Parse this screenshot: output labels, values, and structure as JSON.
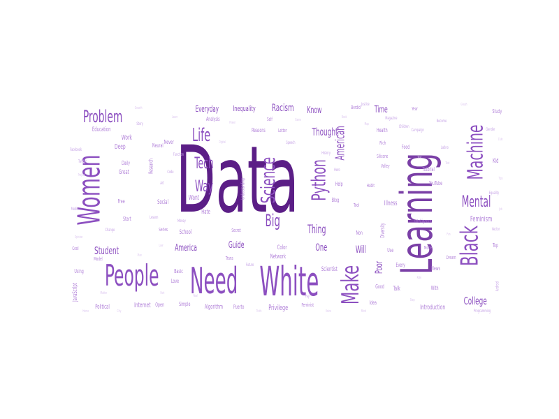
{
  "palette": {
    "deep": "#5b1e86",
    "dark": "#6a2c93",
    "mid": "#7a3fa6",
    "violet": "#8c4fc0",
    "light": "#b07fd8",
    "lilac": "#c6a3e6",
    "pale": "#ddc8f0"
  },
  "words": [
    {
      "text": "Data",
      "tone": "deep"
    },
    {
      "text": "Learning",
      "tone": "mid"
    },
    {
      "text": "White",
      "tone": "violet"
    },
    {
      "text": "Need",
      "tone": "violet"
    },
    {
      "text": "People",
      "tone": "violet"
    },
    {
      "text": "Women",
      "tone": "violet"
    },
    {
      "text": "Black",
      "tone": "violet"
    },
    {
      "text": "Machine",
      "tone": "violet"
    },
    {
      "text": "Make",
      "tone": "violet"
    },
    {
      "text": "Science",
      "tone": "violet"
    },
    {
      "text": "Python",
      "tone": "violet"
    },
    {
      "text": "Problem",
      "tone": "violet"
    },
    {
      "text": "Life",
      "tone": "violet"
    },
    {
      "text": "Tech",
      "tone": "violet"
    },
    {
      "text": "Way",
      "tone": "violet"
    },
    {
      "text": "Big",
      "tone": "violet"
    },
    {
      "text": "Mental",
      "tone": "violet"
    },
    {
      "text": "American",
      "tone": "violet"
    },
    {
      "text": "Thought",
      "tone": "violet"
    },
    {
      "text": "Thing",
      "tone": "violet"
    },
    {
      "text": "Student",
      "tone": "violet"
    },
    {
      "text": "College",
      "tone": "violet"
    },
    {
      "text": "Racism",
      "tone": "violet"
    },
    {
      "text": "Everyday",
      "tone": "violet"
    },
    {
      "text": "Inequality",
      "tone": "violet"
    },
    {
      "text": "Know",
      "tone": "violet"
    },
    {
      "text": "Time",
      "tone": "violet"
    },
    {
      "text": "Guide",
      "tone": "violet"
    },
    {
      "text": "America",
      "tone": "violet"
    },
    {
      "text": "One",
      "tone": "violet"
    },
    {
      "text": "Will",
      "tone": "violet"
    },
    {
      "text": "Poor",
      "tone": "violet"
    },
    {
      "text": "Feminism",
      "tone": "light"
    },
    {
      "text": "Introduction",
      "tone": "light"
    },
    {
      "text": "Privilege",
      "tone": "light"
    },
    {
      "text": "Algorithm",
      "tone": "light"
    },
    {
      "text": "Internet",
      "tone": "light"
    },
    {
      "text": "Political",
      "tone": "light"
    },
    {
      "text": "JavaScript",
      "tone": "light"
    },
    {
      "text": "Scientist",
      "tone": "light"
    },
    {
      "text": "Network",
      "tone": "light"
    },
    {
      "text": "Color",
      "tone": "light"
    },
    {
      "text": "Talk",
      "tone": "light"
    },
    {
      "text": "Every",
      "tone": "light"
    },
    {
      "text": "Illness",
      "tone": "light"
    },
    {
      "text": "Intelligence",
      "tone": "light"
    },
    {
      "text": "Diversity",
      "tone": "light"
    },
    {
      "text": "Social",
      "tone": "light"
    },
    {
      "text": "Want",
      "tone": "light"
    },
    {
      "text": "School",
      "tone": "light"
    },
    {
      "text": "Hate",
      "tone": "light"
    },
    {
      "text": "Work",
      "tone": "light"
    },
    {
      "text": "Deep",
      "tone": "light"
    },
    {
      "text": "Education",
      "tone": "light"
    },
    {
      "text": "Great",
      "tone": "light"
    },
    {
      "text": "Daily",
      "tone": "light"
    },
    {
      "text": "Start",
      "tone": "light"
    },
    {
      "text": "Free",
      "tone": "light"
    },
    {
      "text": "Neural",
      "tone": "light"
    },
    {
      "text": "Research",
      "tone": "light"
    },
    {
      "text": "Never",
      "tone": "light"
    },
    {
      "text": "Analysis",
      "tone": "light"
    },
    {
      "text": "Reasons",
      "tone": "light"
    },
    {
      "text": "Self",
      "tone": "light"
    },
    {
      "text": "Health",
      "tone": "light"
    },
    {
      "text": "Tutorial",
      "tone": "light"
    },
    {
      "text": "YouTube",
      "tone": "light"
    },
    {
      "text": "Help",
      "tone": "light"
    },
    {
      "text": "Blog",
      "tone": "light"
    },
    {
      "text": "News",
      "tone": "light"
    },
    {
      "text": "Top",
      "tone": "light"
    },
    {
      "text": "Kid",
      "tone": "light"
    },
    {
      "text": "Study",
      "tone": "light"
    },
    {
      "text": "Non",
      "tone": "light"
    },
    {
      "text": "Good",
      "tone": "light"
    },
    {
      "text": "Idea",
      "tone": "light"
    },
    {
      "text": "Use",
      "tone": "light"
    },
    {
      "text": "With",
      "tone": "light"
    },
    {
      "text": "Love",
      "tone": "light"
    },
    {
      "text": "Basic",
      "tone": "light"
    },
    {
      "text": "Simple",
      "tone": "light"
    },
    {
      "text": "Puerto",
      "tone": "light"
    },
    {
      "text": "Open",
      "tone": "light"
    },
    {
      "text": "Feminist",
      "tone": "light"
    },
    {
      "text": "Berdid",
      "tone": "light"
    },
    {
      "text": "Year",
      "tone": "light"
    },
    {
      "text": "Mode",
      "tone": "light"
    },
    {
      "text": "Dream",
      "tone": "light"
    },
    {
      "text": "Using",
      "tone": "light"
    },
    {
      "text": "Model",
      "tone": "light"
    },
    {
      "text": "Cool",
      "tone": "light"
    },
    {
      "text": "Tool",
      "tone": "light"
    },
    {
      "text": "Habit",
      "tone": "light"
    },
    {
      "text": "Valley",
      "tone": "light"
    },
    {
      "text": "Silicone",
      "tone": "light"
    },
    {
      "text": "Food",
      "tone": "light"
    },
    {
      "text": "Rich",
      "tone": "light"
    },
    {
      "text": "Letter",
      "tone": "light"
    },
    {
      "text": "Trans",
      "tone": "light"
    },
    {
      "text": "Series",
      "tone": "light"
    },
    {
      "text": "Secret",
      "tone": "light"
    },
    {
      "text": "Understanding",
      "tone": "light"
    },
    {
      "text": "Facebook",
      "tone": "lilac"
    },
    {
      "text": "Twitter",
      "tone": "lilac"
    },
    {
      "text": "Gender",
      "tone": "lilac"
    },
    {
      "text": "Equality",
      "tone": "lilac"
    },
    {
      "text": "Campaign",
      "tone": "lilac"
    },
    {
      "text": "Magazine",
      "tone": "lilac"
    },
    {
      "text": "Function",
      "tone": "lilac"
    },
    {
      "text": "Speech",
      "tone": "lilac"
    },
    {
      "text": "Justice",
      "tone": "lilac"
    },
    {
      "text": "Programming",
      "tone": "lilac"
    },
    {
      "text": "Android",
      "tone": "lilac"
    },
    {
      "text": "Vector",
      "tone": "lilac"
    },
    {
      "text": "Latino",
      "tone": "lilac"
    },
    {
      "text": "Become",
      "tone": "lilac"
    },
    {
      "text": "Children",
      "tone": "lilac"
    },
    {
      "text": "History",
      "tone": "lilac"
    },
    {
      "text": "Hero",
      "tone": "lilac"
    },
    {
      "text": "Media",
      "tone": "lilac"
    },
    {
      "text": "Change",
      "tone": "lilac"
    },
    {
      "text": "Story",
      "tone": "lilac"
    },
    {
      "text": "Code",
      "tone": "lilac"
    },
    {
      "text": "Art",
      "tone": "lilac"
    },
    {
      "text": "Lesson",
      "tone": "lilac"
    },
    {
      "text": "Money",
      "tone": "lilac"
    },
    {
      "text": "Future",
      "tone": "lilac"
    },
    {
      "text": "Pay",
      "tone": "lilac"
    },
    {
      "text": "Project",
      "tone": "pale"
    },
    {
      "text": "Opinion",
      "tone": "pale"
    },
    {
      "text": "Matter",
      "tone": "pale"
    },
    {
      "text": "Growth",
      "tone": "pale"
    },
    {
      "text": "Learn",
      "tone": "pale"
    },
    {
      "text": "Digital",
      "tone": "pale"
    },
    {
      "text": "Power",
      "tone": "pale"
    },
    {
      "text": "Game",
      "tone": "pale"
    },
    {
      "text": "Book",
      "tone": "pale"
    },
    {
      "text": "Map",
      "tone": "pale"
    },
    {
      "text": "Test",
      "tone": "pale"
    },
    {
      "text": "Text",
      "tone": "pale"
    },
    {
      "text": "Graph",
      "tone": "pale"
    },
    {
      "text": "Club",
      "tone": "pale"
    },
    {
      "text": "Tips",
      "tone": "pale"
    },
    {
      "text": "Job",
      "tone": "pale"
    },
    {
      "text": "Fun",
      "tone": "pale"
    },
    {
      "text": "Rule",
      "tone": "pale"
    },
    {
      "text": "Step",
      "tone": "pale"
    },
    {
      "text": "Mind",
      "tone": "pale"
    },
    {
      "text": "Voice",
      "tone": "pale"
    },
    {
      "text": "Truth",
      "tone": "pale"
    },
    {
      "text": "Real",
      "tone": "pale"
    },
    {
      "text": "Part",
      "tone": "pale"
    },
    {
      "text": "City",
      "tone": "pale"
    },
    {
      "text": "Home",
      "tone": "pale"
    },
    {
      "text": "Law",
      "tone": "pale"
    },
    {
      "text": "Plan",
      "tone": "pale"
    }
  ]
}
